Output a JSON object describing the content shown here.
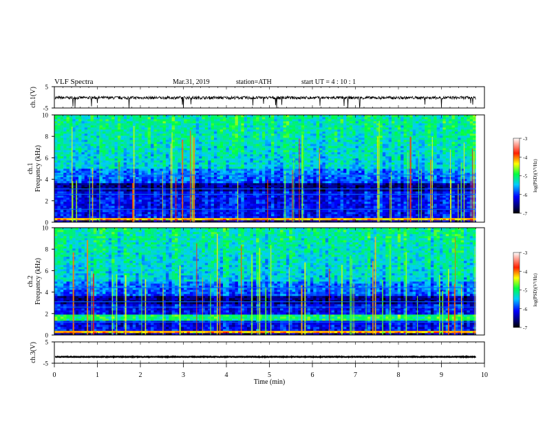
{
  "header": {
    "title": "VLF  Spectra",
    "date": "Mar.31, 2019",
    "station": "station=ATH",
    "start_ut": "start  UT  =   4  : 10 : 1"
  },
  "chart_data": [
    {
      "type": "line",
      "ylabel": "ch.1(V)",
      "ylim": [
        -5,
        5
      ],
      "yticks": [
        "5",
        "-5"
      ],
      "xlim": [
        0,
        10
      ],
      "series": [
        {
          "y_mean": -0.2,
          "y_noise": 0.7
        }
      ]
    },
    {
      "type": "heatmap",
      "ylabel_lines": [
        "ch.1",
        "Frequency  (kHz)"
      ],
      "ylim": [
        0,
        10
      ],
      "yticks": [
        "0",
        "2",
        "4",
        "6",
        "8",
        "10"
      ],
      "xlim": [
        0,
        9.8
      ],
      "colorbar": {
        "label": "log(PSD)(V²/Hz)",
        "range": [
          -7,
          -3
        ],
        "ticks": [
          "-3",
          "-4",
          "-5",
          "-6",
          "-7"
        ]
      }
    },
    {
      "type": "heatmap",
      "ylabel_lines": [
        "ch.2",
        "Frequency  (kHz)"
      ],
      "ylim": [
        0,
        10
      ],
      "yticks": [
        "0",
        "2",
        "4",
        "6",
        "8",
        "10"
      ],
      "xlim": [
        0,
        9.8
      ],
      "colorbar": {
        "label": "log(PSD)(V²/Hz)",
        "range": [
          -7,
          -3
        ],
        "ticks": [
          "-3",
          "-4",
          "-5",
          "-6",
          "-7"
        ]
      }
    },
    {
      "type": "line",
      "ylabel": "ch.3(V)",
      "ylim": [
        -5,
        5
      ],
      "yticks": [
        "5",
        "-5"
      ],
      "xlim": [
        0,
        10
      ],
      "series": [
        {
          "y_mean": -2.0,
          "y_noise": 0.15
        }
      ]
    }
  ],
  "x_axis": {
    "label": "Time  (min)",
    "range": [
      0,
      10
    ],
    "ticks": [
      "0",
      "1",
      "2",
      "3",
      "4",
      "5",
      "6",
      "7",
      "8",
      "9",
      "10"
    ]
  }
}
